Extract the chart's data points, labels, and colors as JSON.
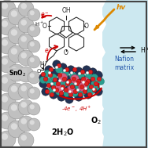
{
  "fig_width": 1.88,
  "fig_height": 1.89,
  "dpi": 100,
  "bg_color": "#ffffff",
  "right_panel_color": "#cce8f0",
  "border_color": "#444444",
  "sphere_color": "#c0c0c0",
  "sphere_edge": "#888888",
  "sphere_hl": "#e8e8e8",
  "mol_color": "#222222",
  "arrow_color": "#cc0000",
  "hv_color": "#dd8800",
  "teal": "#2a9d8f",
  "dark_teal": "#1d7a70",
  "pink": "#d45f80",
  "dark_pink": "#a03060",
  "red_atom": "#dd2020",
  "white_atom": "#ffffff",
  "grey_atom": "#888888",
  "dark_blue": "#223355",
  "nafion_color": "#2255aa",
  "sno2_label": "SnO$_2$",
  "hv_label": "hv",
  "hplus_label": "H$^+$",
  "nafion_label": "Nafion\nmatrix",
  "water_label": "2H$_2$O",
  "o2_label": "O$_2$",
  "reaction_label": "-4e$^-$, 4H$^+$",
  "oh_label": "OH",
  "e_label": "e$^-$"
}
